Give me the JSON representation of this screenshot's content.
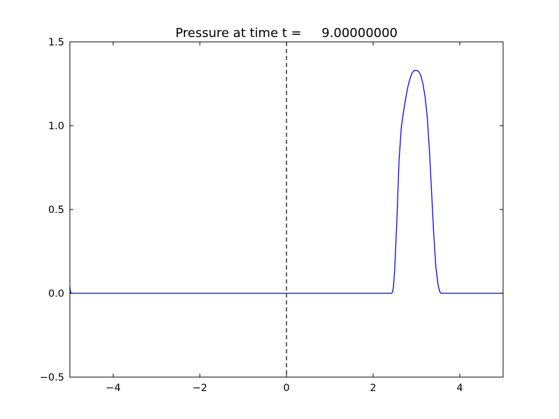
{
  "chart_data": {
    "type": "line",
    "title": "Pressure at time t =     9.00000000",
    "xlabel": "",
    "ylabel": "",
    "xlim": [
      -5,
      5
    ],
    "ylim": [
      -0.5,
      1.5
    ],
    "x_ticks": [
      -4,
      -2,
      0,
      2,
      4
    ],
    "x_tick_labels": [
      "−4",
      "−2",
      "0",
      "2",
      "4"
    ],
    "y_ticks": [
      -0.5,
      0.0,
      0.5,
      1.0,
      1.5
    ],
    "y_tick_labels": [
      "−0.5",
      "0.0",
      "0.5",
      "1.0",
      "1.5"
    ],
    "grid": false,
    "reference_line": {
      "x": 0,
      "style": "dashed",
      "color": "#000000"
    },
    "series": [
      {
        "color": "#0000ff",
        "x": [
          -5.0,
          -4.99,
          -4.97,
          -4.9,
          2.4,
          2.43,
          2.45,
          2.47,
          2.5,
          2.55,
          2.6,
          2.65,
          2.7,
          2.75,
          2.8,
          2.85,
          2.9,
          2.95,
          3.0,
          3.05,
          3.1,
          3.15,
          3.2,
          3.25,
          3.3,
          3.35,
          3.4,
          3.45,
          3.5,
          3.53,
          3.55,
          3.57,
          3.6,
          3.62,
          3.65,
          5.0
        ],
        "y": [
          0.04,
          0.015,
          0.0,
          0.0,
          0.0,
          0.0,
          0.01,
          0.04,
          0.15,
          0.45,
          0.8,
          0.99,
          1.08,
          1.16,
          1.23,
          1.28,
          1.315,
          1.33,
          1.33,
          1.325,
          1.3,
          1.25,
          1.17,
          1.05,
          0.85,
          0.6,
          0.35,
          0.15,
          0.05,
          0.015,
          0.005,
          0.0,
          0.0,
          0.0,
          0.0,
          0.0
        ]
      }
    ]
  }
}
